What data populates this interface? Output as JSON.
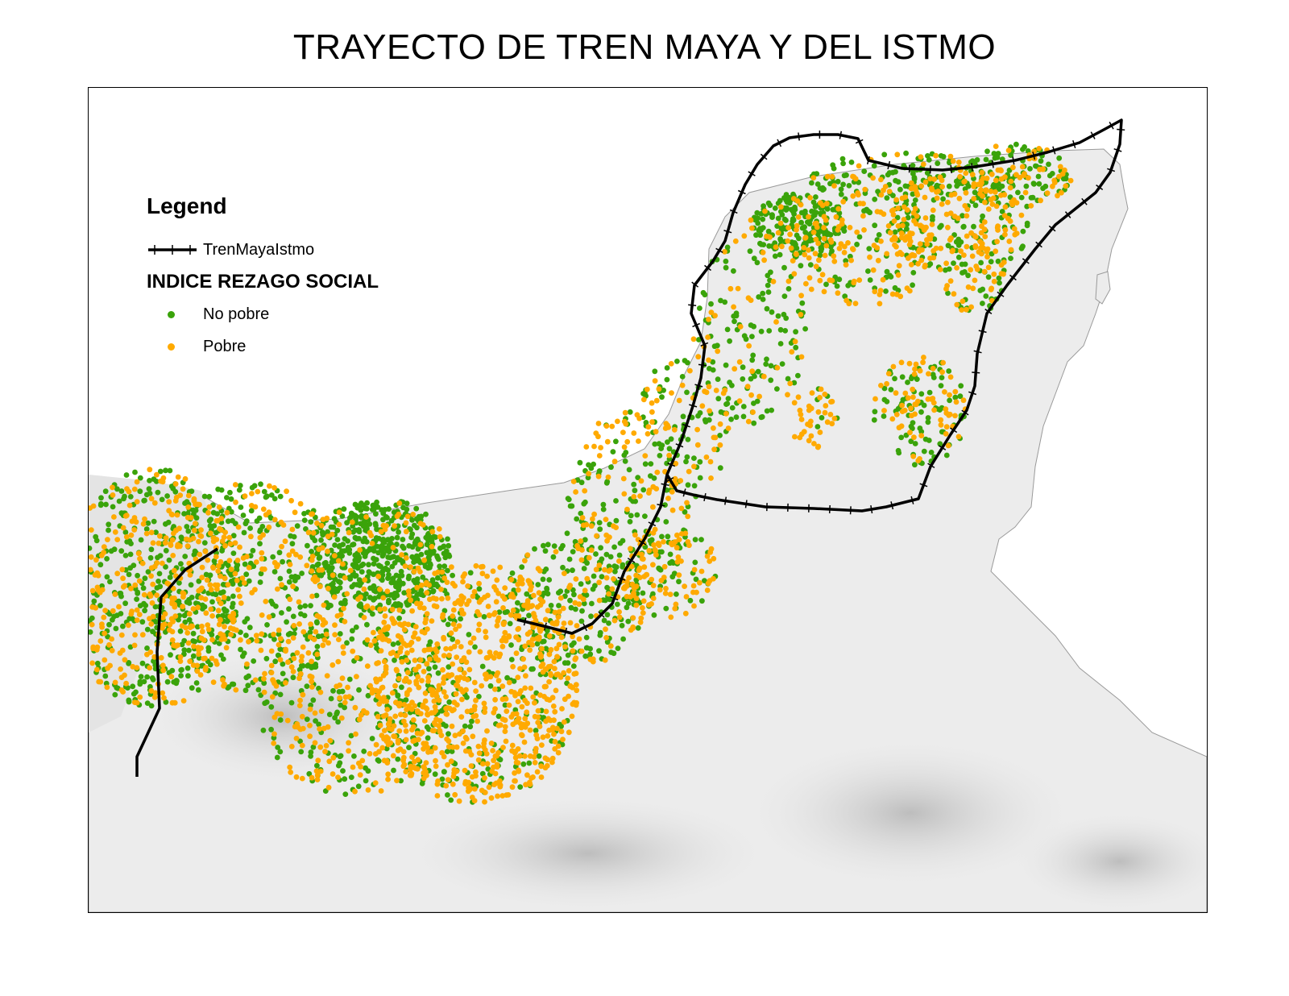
{
  "map": {
    "title": "TRAYECTO DE TREN MAYA Y DEL ISTMO",
    "legend": {
      "heading": "Legend",
      "line_label": "TrenMayaIstmo",
      "section_title": "INDICE REZAGO SOCIAL",
      "items": [
        {
          "label": "No pobre",
          "color": "#3aa30a"
        },
        {
          "label": "Pobre",
          "color": "#ffaa00"
        }
      ]
    },
    "colors": {
      "no_pobre": "#3aa30a",
      "pobre": "#ffaa00",
      "rail": "#000000",
      "land": "#e9e9e9",
      "relief": "#cfcfcf"
    }
  }
}
